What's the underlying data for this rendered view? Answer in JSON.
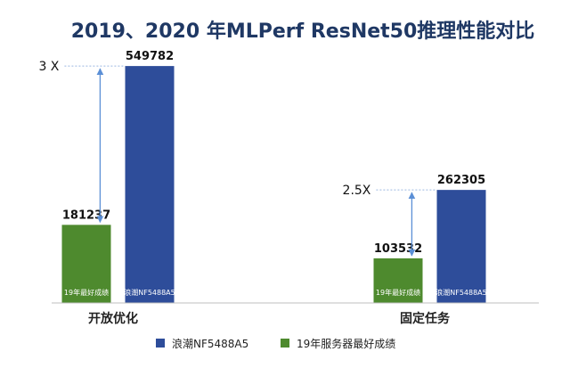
{
  "chart_data": {
    "type": "bar",
    "title": "2019、2020 年MLPerf ResNet50推理性能对比",
    "categories": [
      "开放优化",
      "固定任务"
    ],
    "series": [
      {
        "name": "19年服务器最好成绩",
        "color": "#4e8a2e",
        "values": [
          181237,
          103532
        ],
        "bar_labels": [
          "19年最好成绩",
          "19年最好成绩"
        ]
      },
      {
        "name": "浪潮NF5488A5",
        "color": "#2e4d9a",
        "values": [
          549782,
          262305
        ],
        "bar_labels": [
          "浪潮NF5488A5",
          "浪潮NF5488A5"
        ]
      }
    ],
    "multipliers": [
      "3 X",
      "2.5X"
    ],
    "ylim": [
      0,
      600000
    ],
    "grid": false,
    "legend_position": "bottom"
  }
}
